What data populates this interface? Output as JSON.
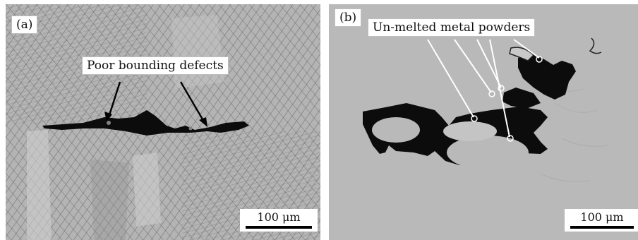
{
  "panels": [
    {
      "tag": "(a)",
      "annotation": "Poor bounding defects",
      "scale": "100 μm"
    },
    {
      "tag": "(b)",
      "annotation": "Un-melted metal powders",
      "scale": "100 μm"
    }
  ],
  "colors": {
    "micrograph_a_base": "#b4b4b4",
    "micrograph_b_base": "#b9b9b9",
    "defect": "#0c0c0c"
  }
}
